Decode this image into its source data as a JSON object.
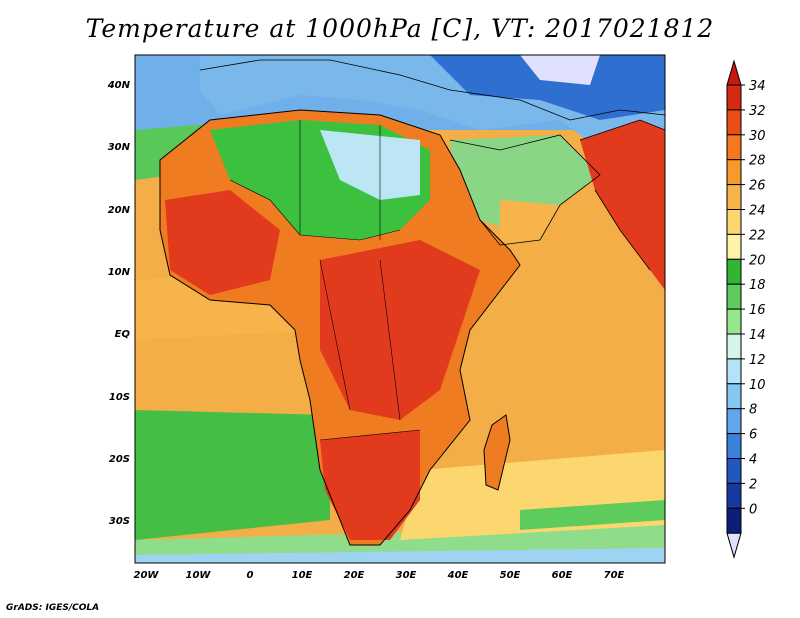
{
  "title": "Temperature at 1000hPa [C], VT: 2017021812",
  "credit": "GrADS: IGES/COLA",
  "map": {
    "lat_labels": [
      "40N",
      "30N",
      "20N",
      "10N",
      "EQ",
      "10S",
      "20S",
      "30S"
    ],
    "lon_labels": [
      "20W",
      "10W",
      "0",
      "10E",
      "20E",
      "30E",
      "40E",
      "50E",
      "60E",
      "70E"
    ],
    "ocean_color": "#f4ae48",
    "land_colors": {
      "hot": "#e23a1c",
      "warm": "#f07c22",
      "cool": "#3cc13e",
      "cold": "#7ab8ec",
      "frigid": "#2f6fd0"
    }
  },
  "colorbar": {
    "labels": [
      "34",
      "32",
      "30",
      "28",
      "26",
      "24",
      "22",
      "20",
      "18",
      "16",
      "14",
      "12",
      "10",
      "8",
      "6",
      "4",
      "2",
      "0"
    ],
    "colors": [
      "#d62a12",
      "#ea4e17",
      "#f5781e",
      "#f79a2e",
      "#f7b44a",
      "#fcd770",
      "#fdf3a8",
      "#32b435",
      "#5dcc5d",
      "#96e68e",
      "#d5f5e8",
      "#b4e2f8",
      "#86c6f2",
      "#5fa6ea",
      "#3b80db",
      "#2158c0",
      "#173aa0",
      "#0c1f78"
    ],
    "top_arrow_color": "#c81810",
    "bottom_arrow_color": "#e0e0ff"
  }
}
